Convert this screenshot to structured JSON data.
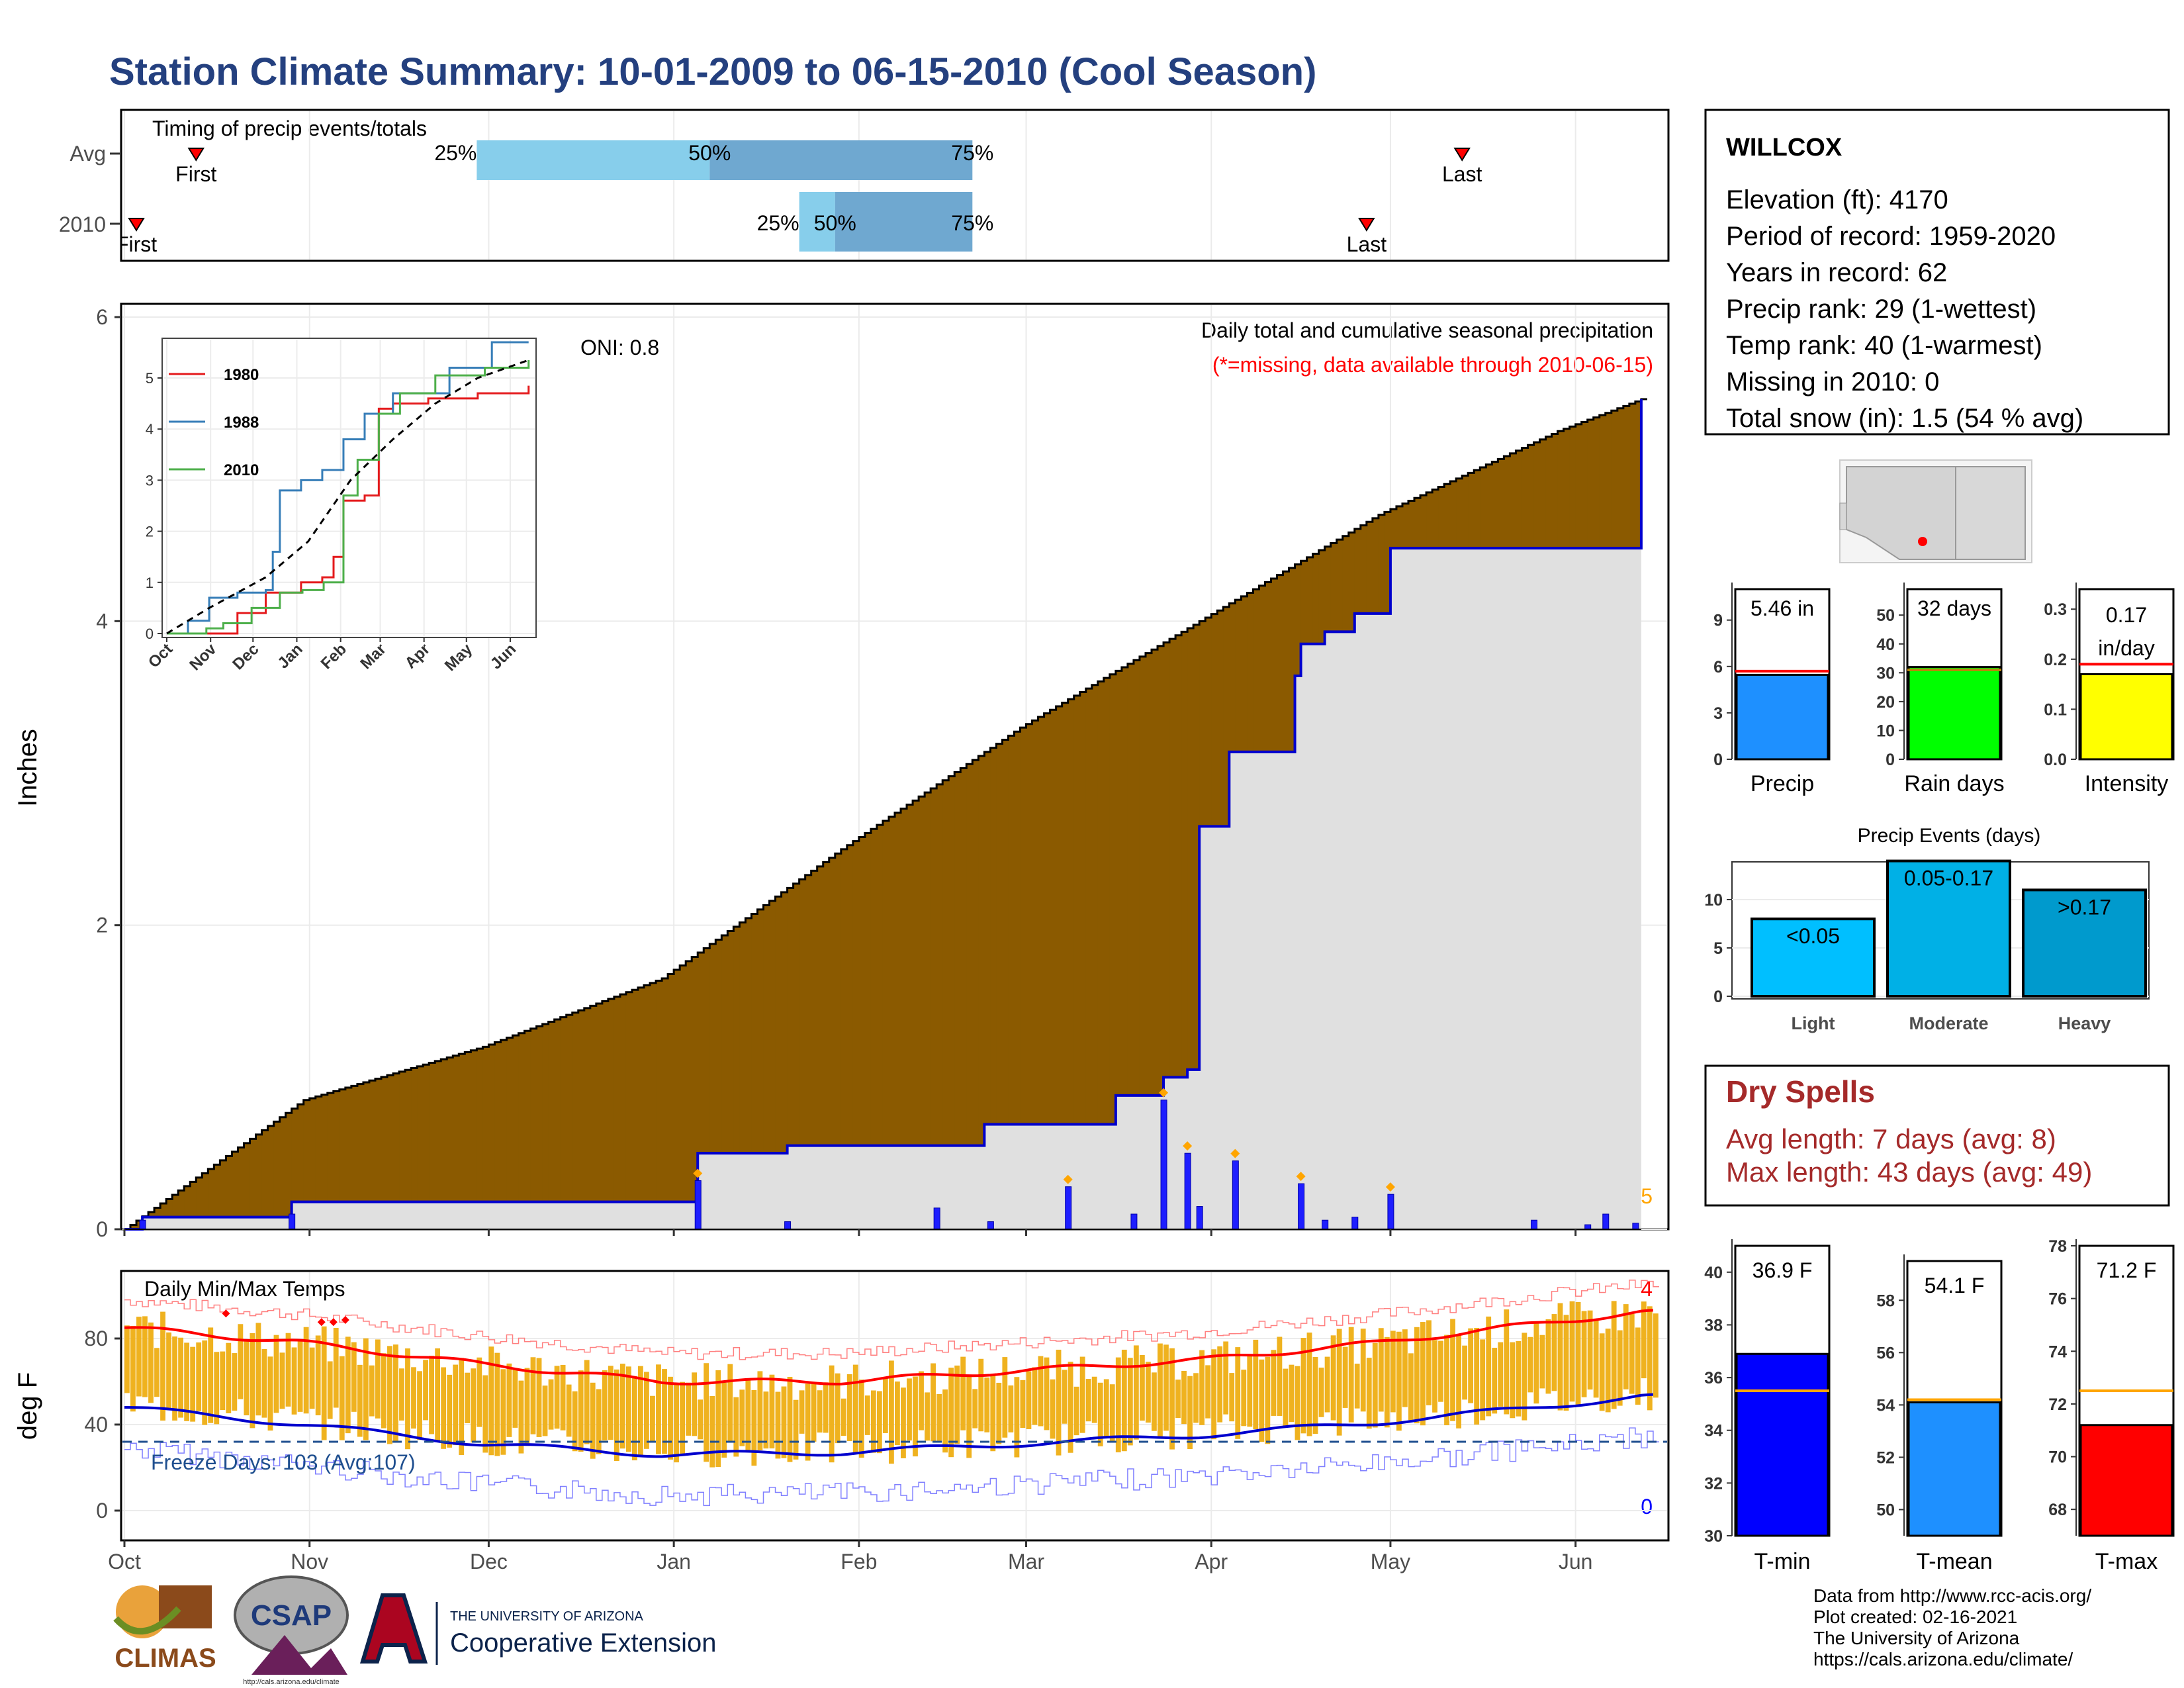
{
  "title": "Station Climate Summary: 10-01-2009 to 06-15-2010 (Cool Season)",
  "months": [
    "Oct",
    "Nov",
    "Dec",
    "Jan",
    "Feb",
    "Mar",
    "Apr",
    "May",
    "Jun"
  ],
  "timing": {
    "label": "Timing of precip events/totals",
    "rows": [
      {
        "label": "Avg",
        "q25_day": 59,
        "q50_day": 98,
        "q75_day": 142,
        "first_day": 12,
        "last_day": 224,
        "first_label": "First",
        "last_label": "Last"
      },
      {
        "label": "2010",
        "q25_day": 113,
        "q50_day": 119,
        "q75_day": 142,
        "first_day": 2,
        "last_day": 208,
        "first_label": "First",
        "last_label": "Last"
      }
    ],
    "q_labels": [
      "25%",
      "50%",
      "75%"
    ],
    "colors": {
      "q25": "#87ceeb",
      "q50": "#6fa8d0"
    }
  },
  "main": {
    "ylabel": "Inches",
    "oni": "ONI: 0.8",
    "desc": "Daily total and cumulative seasonal precipitation",
    "missing_note": "(*=missing, data available through 2010-06-15)",
    "missing_count": "5",
    "yticks": [
      "0",
      "2",
      "4",
      "6"
    ],
    "colors": {
      "below": "#8b5a00",
      "above": "#008000",
      "season": "#0000cd",
      "fill": "#e0e0e0"
    }
  },
  "inset": {
    "legend": [
      "1980",
      "1988",
      "2010"
    ],
    "legend_colors": [
      "#e41a1c",
      "#377eb8",
      "#4daf4a"
    ],
    "yticks": [
      "0",
      "1",
      "2",
      "3",
      "4",
      "5"
    ]
  },
  "temp": {
    "ylabel": "deg F",
    "title": "Daily Min/Max Temps",
    "freeze": "Freeze Days: 103 (Avg:107)",
    "max_record_count": "4",
    "min_record_count": "0",
    "yticks": [
      "0",
      "40",
      "80"
    ]
  },
  "station": {
    "name": "WILLCOX",
    "lines": [
      "Elevation (ft): 4170",
      "Period of record: 1959-2020",
      "Years in record: 62",
      "Precip rank: 29 (1-wettest)",
      "Temp rank: 40 (1-warmest)",
      "Missing in 2010: 0",
      "Total snow (in): 1.5 (54 % avg)"
    ]
  },
  "summary_bars": [
    {
      "label": "Precip",
      "value": 5.46,
      "avg": 5.7,
      "text": "5.46 in",
      "ymax": 11,
      "ticks": [
        "0",
        "3",
        "6",
        "9"
      ],
      "color": "#1e90ff"
    },
    {
      "label": "Rain days",
      "value": 32,
      "avg": 31,
      "text": "32 days",
      "ymax": 59,
      "ticks": [
        "0",
        "10",
        "20",
        "30",
        "40",
        "50"
      ],
      "color": "#00ff00"
    },
    {
      "label": "Intensity",
      "value": 0.17,
      "avg": 0.19,
      "text": "0.17 in/day",
      "ymax": 0.34,
      "ticks": [
        "0.0",
        "0.1",
        "0.2",
        "0.3"
      ],
      "color": "#ffff00"
    }
  ],
  "events": {
    "title": "Precip Events (days)",
    "bars": [
      {
        "label": "Light",
        "range": "<0.05",
        "value": 8
      },
      {
        "label": "Moderate",
        "range": "0.05-0.17",
        "value": 14
      },
      {
        "label": "Heavy",
        "range": ">0.17",
        "value": 11
      }
    ],
    "ticks": [
      "0",
      "5",
      "10"
    ],
    "colors": [
      "#00bfff",
      "#00b0e6",
      "#009acd"
    ]
  },
  "dry": {
    "title": "Dry Spells",
    "avg": "Avg length: 7 days (avg: 8)",
    "max": "Max length: 43 days (avg: 49)"
  },
  "temp_bars": [
    {
      "label": "T-min",
      "value": 36.9,
      "avg": 35.5,
      "text": "36.9 F",
      "ymin": 30,
      "ymax": 41,
      "ticks": [
        "30",
        "32",
        "34",
        "36",
        "38",
        "40"
      ],
      "color": "#0000ff"
    },
    {
      "label": "T-mean",
      "value": 54.1,
      "avg": 54.2,
      "text": "54.1 F",
      "ymin": 49,
      "ymax": 59.5,
      "ticks": [
        "50",
        "52",
        "54",
        "56",
        "58"
      ],
      "color": "#1e90ff"
    },
    {
      "label": "T-max",
      "value": 71.2,
      "avg": 72.5,
      "text": "71.2 F",
      "ymin": 67,
      "ymax": 78,
      "ticks": [
        "68",
        "70",
        "72",
        "74",
        "76",
        "78"
      ],
      "color": "#ff0000"
    }
  ],
  "footer": {
    "lines": [
      "Data from http://www.rcc-acis.org/",
      "Plot created: 02-16-2021",
      "The University of Arizona",
      "https://cals.arizona.edu/climate/"
    ],
    "climas": "CLIMAS",
    "csap": "CSAP",
    "csap_url": "http://cals.arizona.edu/climate",
    "ua_small": "THE UNIVERSITY OF ARIZONA",
    "ua_big": "Cooperative Extension"
  },
  "chart_data": [
    {
      "type": "step-area",
      "title": "Daily total and cumulative seasonal precipitation",
      "ylabel": "Inches",
      "x_unit": "day of season (0 = Oct 1)",
      "ylim": [
        0,
        6
      ],
      "series": [
        {
          "name": "2010",
          "x": [
            0,
            3,
            27,
            28,
            95,
            96,
            110,
            111,
            134,
            144,
            150,
            166,
            174,
            178,
            180,
            185,
            196,
            197,
            201,
            206,
            212,
            254
          ],
          "y": [
            0.0,
            0.08,
            0.08,
            0.18,
            0.18,
            0.5,
            0.5,
            0.55,
            0.55,
            0.69,
            0.69,
            0.88,
            1.0,
            1.05,
            2.65,
            3.14,
            3.64,
            3.85,
            3.93,
            4.05,
            4.48,
            5.46
          ]
        },
        {
          "name": "",
          "x": [
            0,
            30,
            60,
            90,
            120,
            150,
            180,
            210,
            240,
            254
          ],
          "y": [
            0.0,
            0.85,
            1.2,
            1.65,
            2.5,
            3.3,
            4.0,
            4.7,
            5.25,
            5.46
          ]
        }
      ]
    },
    {
      "type": "bar",
      "title": "Daily total and cumulative seasonal precipitation",
      "ylabel": "Inches",
      "x": [
        3,
        28,
        96,
        111,
        136,
        145,
        158,
        169,
        174,
        178,
        180,
        186,
        197,
        201,
        206,
        212,
        236,
        245,
        248,
        253
      ],
      "values": [
        0.06,
        0.1,
        0.32,
        0.05,
        0.14,
        0.05,
        0.28,
        0.1,
        0.85,
        0.5,
        0.15,
        0.45,
        0.3,
        0.06,
        0.08,
        0.23,
        0.06,
        0.03,
        0.1,
        0.04
      ]
    },
    {
      "type": "line",
      "title": "Daily Min/Max Temps",
      "ylabel": "deg F",
      "x": [
        0,
        30,
        60,
        90,
        120,
        150,
        180,
        210,
        240,
        254
      ],
      "ylim": [
        -10,
        100
      ],
      "series": [
        {
          "name": "",
          "values": [
            85,
            78,
            68,
            60,
            60,
            65,
            70,
            78,
            88,
            92
          ]
        },
        {
          "name": "",
          "values": [
            48,
            40,
            31,
            26,
            27,
            31,
            35,
            41,
            49,
            53
          ]
        }
      ]
    }
  ]
}
